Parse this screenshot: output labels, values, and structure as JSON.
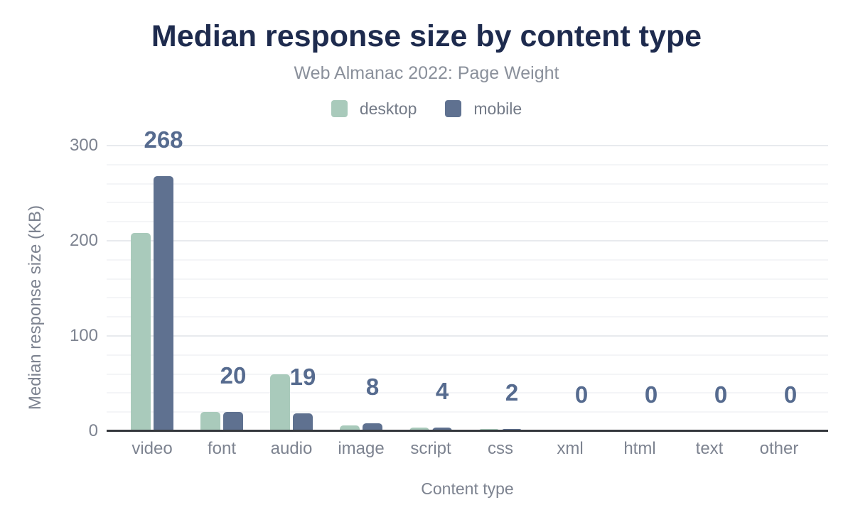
{
  "chart_data": {
    "type": "bar",
    "title": "Median response size by content type",
    "subtitle": "Web Almanac 2022: Page Weight",
    "xlabel": "Content type",
    "ylabel": "Median response size (KB)",
    "categories": [
      "video",
      "font",
      "audio",
      "image",
      "script",
      "css",
      "xml",
      "html",
      "text",
      "other"
    ],
    "series": [
      {
        "name": "desktop",
        "color": "#a9cabb",
        "values": [
          208,
          20,
          60,
          6,
          4,
          2,
          0,
          0,
          0,
          0
        ]
      },
      {
        "name": "mobile",
        "color": "#5f7190",
        "values": [
          268,
          20,
          19,
          8,
          4,
          2,
          0,
          0,
          0,
          0
        ]
      }
    ],
    "data_labels": {
      "source_series": "mobile",
      "values": [
        "268",
        "20",
        "19",
        "8",
        "4",
        "2",
        "0",
        "0",
        "0",
        "0"
      ]
    },
    "y_axis": {
      "min": 0,
      "max": 300,
      "tick_step": 100,
      "minor_grid_step": 20,
      "ticks": [
        "0",
        "100",
        "200",
        "300"
      ]
    },
    "legend_position": "top",
    "grid": true
  },
  "colors": {
    "background": "#ffffff",
    "title": "#1e2b4e",
    "subtitle": "#8a909b",
    "legend_text": "#737a87",
    "axis_text": "#7d8390",
    "data_label": "#566b8f",
    "axis_line": "#35383d",
    "grid_minor": "#f4f5f7",
    "grid_major": "#e8eaee"
  }
}
